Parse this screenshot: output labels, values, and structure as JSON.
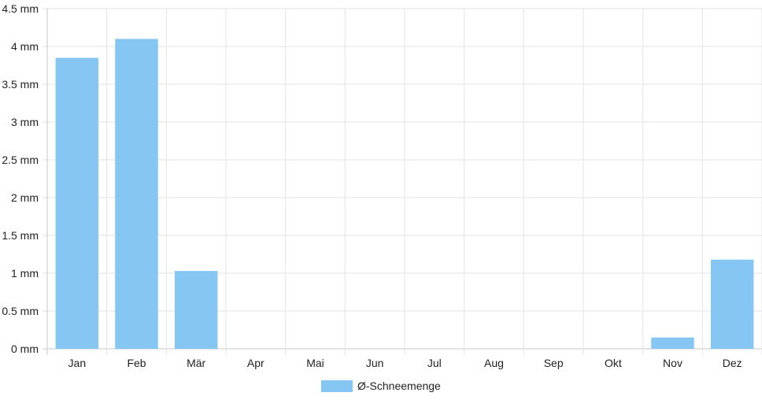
{
  "chart_data": {
    "type": "bar",
    "categories": [
      "Jan",
      "Feb",
      "Mär",
      "Apr",
      "Mai",
      "Jun",
      "Jul",
      "Aug",
      "Sep",
      "Okt",
      "Nov",
      "Dez"
    ],
    "series": [
      {
        "name": "Ø-Schneemenge",
        "values": [
          3.85,
          4.1,
          1.03,
          0,
          0,
          0,
          0,
          0,
          0,
          0,
          0.15,
          1.18
        ]
      }
    ],
    "y_tick_labels": [
      "0 mm",
      "0.5 mm",
      "1 mm",
      "1.5 mm",
      "2 mm",
      "2.5 mm",
      "3 mm",
      "3.5 mm",
      "4 mm",
      "4.5 mm"
    ],
    "ylim": [
      0,
      4.5
    ],
    "grid": true,
    "legend_position": "bottom",
    "colors": {
      "bar": "#85c6f2",
      "grid": "#e3e3e3",
      "axis": "#c8c8c8"
    }
  }
}
